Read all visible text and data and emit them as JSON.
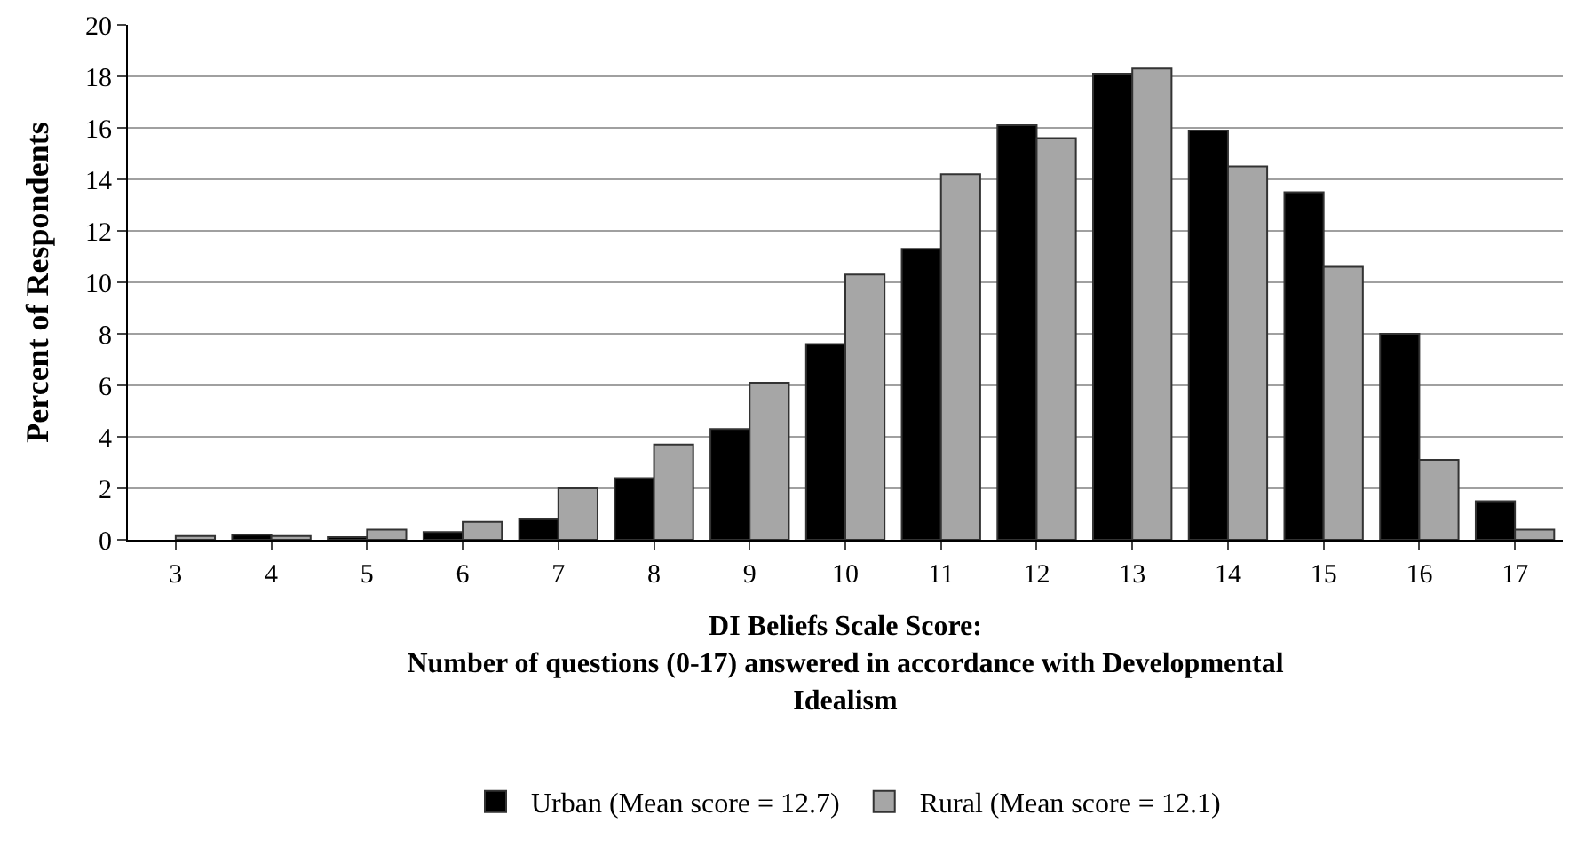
{
  "chart_data": {
    "type": "bar",
    "xlabel": "DI Beliefs Scale Score:\nNumber of questions (0-17) answered in accordance with Developmental\nIdealism",
    "ylabel": "Percent of Respondents",
    "categories": [
      "3",
      "4",
      "5",
      "6",
      "7",
      "8",
      "9",
      "10",
      "11",
      "12",
      "13",
      "14",
      "15",
      "16",
      "17"
    ],
    "series": [
      {
        "name": "Urban (Mean score = 12.7)",
        "color": "#000000",
        "values": [
          null,
          0.2,
          0.1,
          0.3,
          0.8,
          2.4,
          4.3,
          7.6,
          11.3,
          16.1,
          18.1,
          15.9,
          13.5,
          8.0,
          1.5
        ]
      },
      {
        "name": "Rural (Mean score = 12.1)",
        "color": "#a6a6a6",
        "values": [
          0.15,
          0.15,
          0.4,
          0.7,
          2.0,
          3.7,
          6.1,
          10.3,
          14.2,
          15.6,
          18.3,
          14.5,
          10.6,
          3.1,
          0.4
        ]
      }
    ],
    "ylim": [
      0,
      20
    ],
    "yticks": [
      0,
      2,
      4,
      6,
      8,
      10,
      12,
      14,
      16,
      18,
      20
    ],
    "grid": "y",
    "legend": "bottom"
  }
}
